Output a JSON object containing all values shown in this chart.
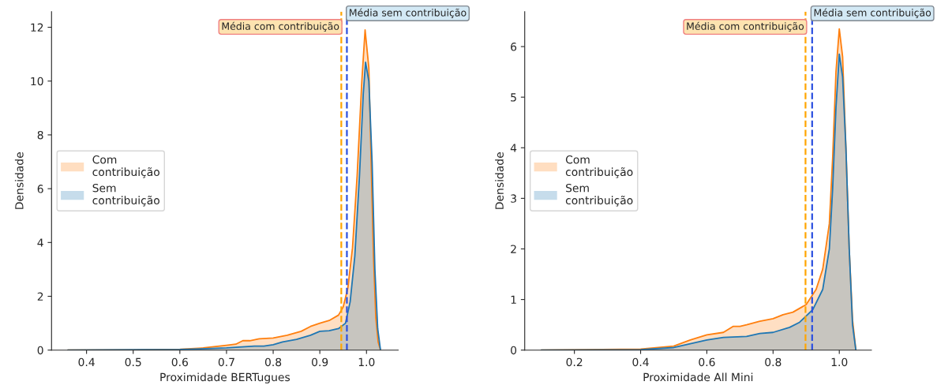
{
  "chart_data": [
    {
      "type": "area",
      "xlabel": "Proximidade BERTugues",
      "ylabel": "Densidade",
      "xlim": [
        0.325,
        1.068
      ],
      "ylim": [
        0,
        12.58
      ],
      "xticks": [
        {
          "value": 0.4,
          "label": "0.4"
        },
        {
          "value": 0.5,
          "label": "0.5"
        },
        {
          "value": 0.6,
          "label": "0.6"
        },
        {
          "value": 0.7,
          "label": "0.7"
        },
        {
          "value": 0.8,
          "label": "0.8"
        },
        {
          "value": 0.9,
          "label": "0.9"
        },
        {
          "value": 1.0,
          "label": "1.0"
        }
      ],
      "yticks": [
        0,
        2,
        4,
        6,
        8,
        10,
        12
      ],
      "grid": false,
      "legend": "center left",
      "series": [
        {
          "name": "Com\ncontribuição",
          "color": "#ff7f0e",
          "x": [
            0.36,
            0.5,
            0.6,
            0.65,
            0.7,
            0.72,
            0.735,
            0.75,
            0.77,
            0.8,
            0.83,
            0.86,
            0.88,
            0.9,
            0.92,
            0.94,
            0.95,
            0.96,
            0.97,
            0.98,
            0.99,
            0.997,
            1.005,
            1.01,
            1.015,
            1.02,
            1.025,
            1.03
          ],
          "values": [
            0,
            0.01,
            0.03,
            0.08,
            0.18,
            0.22,
            0.35,
            0.35,
            0.42,
            0.45,
            0.55,
            0.7,
            0.88,
            1.0,
            1.1,
            1.3,
            1.6,
            2.3,
            3.8,
            6.5,
            10,
            11.9,
            10.5,
            7,
            3.5,
            1.2,
            0.3,
            0
          ]
        },
        {
          "name": "Sem\ncontribuição",
          "color": "#1f77b4",
          "x": [
            0.36,
            0.6,
            0.7,
            0.76,
            0.78,
            0.8,
            0.82,
            0.85,
            0.88,
            0.9,
            0.92,
            0.94,
            0.955,
            0.965,
            0.975,
            0.985,
            0.993,
            0.998,
            1.005,
            1.012,
            1.018,
            1.024,
            1.03
          ],
          "values": [
            0,
            0.02,
            0.08,
            0.15,
            0.15,
            0.2,
            0.3,
            0.4,
            0.55,
            0.7,
            0.72,
            0.8,
            1.0,
            1.8,
            3.5,
            6.5,
            9.5,
            10.7,
            10,
            7,
            3,
            0.8,
            0
          ]
        }
      ],
      "ref_lines": [
        {
          "axis": "x",
          "value": 0.946,
          "label": "Média com contribuição",
          "color": "#ffa500",
          "line_style": "dashed"
        },
        {
          "axis": "x",
          "value": 0.958,
          "label": "Média sem contribuição",
          "color": "#2b50e0",
          "line_style": "dashed"
        }
      ]
    },
    {
      "type": "area",
      "xlabel": "Proximidade All Mini",
      "ylabel": "Densidade",
      "xlim": [
        0.05,
        1.097
      ],
      "ylim": [
        0,
        6.69
      ],
      "xticks": [
        {
          "value": 0.2,
          "label": "0.2"
        },
        {
          "value": 0.4,
          "label": "0.4"
        },
        {
          "value": 0.6,
          "label": "0.6"
        },
        {
          "value": 0.8,
          "label": "0.8"
        },
        {
          "value": 1.0,
          "label": "1.0"
        }
      ],
      "yticks": [
        0,
        1,
        2,
        3,
        4,
        5,
        6
      ],
      "grid": false,
      "legend": "center left",
      "series": [
        {
          "name": "Com\ncontribuição",
          "color": "#ff7f0e",
          "x": [
            0.1,
            0.4,
            0.5,
            0.55,
            0.6,
            0.65,
            0.68,
            0.7,
            0.72,
            0.76,
            0.8,
            0.83,
            0.86,
            0.9,
            0.93,
            0.95,
            0.97,
            0.98,
            0.99,
            1.0,
            1.01,
            1.02,
            1.03,
            1.04,
            1.05
          ],
          "values": [
            0,
            0.02,
            0.08,
            0.2,
            0.3,
            0.35,
            0.47,
            0.47,
            0.5,
            0.57,
            0.62,
            0.7,
            0.75,
            0.9,
            1.2,
            1.6,
            2.5,
            3.8,
            5.5,
            6.35,
            5.8,
            4,
            2,
            0.6,
            0
          ]
        },
        {
          "name": "Sem\ncontribuição",
          "color": "#1f77b4",
          "x": [
            0.1,
            0.4,
            0.5,
            0.6,
            0.65,
            0.72,
            0.76,
            0.8,
            0.85,
            0.88,
            0.92,
            0.95,
            0.97,
            0.98,
            0.99,
            1.0,
            1.01,
            1.02,
            1.03,
            1.04,
            1.05
          ],
          "values": [
            0,
            0.01,
            0.05,
            0.2,
            0.25,
            0.27,
            0.33,
            0.35,
            0.45,
            0.55,
            0.8,
            1.2,
            2,
            3.2,
            4.8,
            5.85,
            5.4,
            4,
            2,
            0.5,
            0
          ]
        }
      ],
      "ref_lines": [
        {
          "axis": "x",
          "value": 0.898,
          "label": "Média com contribuição",
          "color": "#ffa500",
          "line_style": "dashed"
        },
        {
          "axis": "x",
          "value": 0.918,
          "label": "Média sem contribuição",
          "color": "#2b50e0",
          "line_style": "dashed"
        }
      ]
    }
  ]
}
